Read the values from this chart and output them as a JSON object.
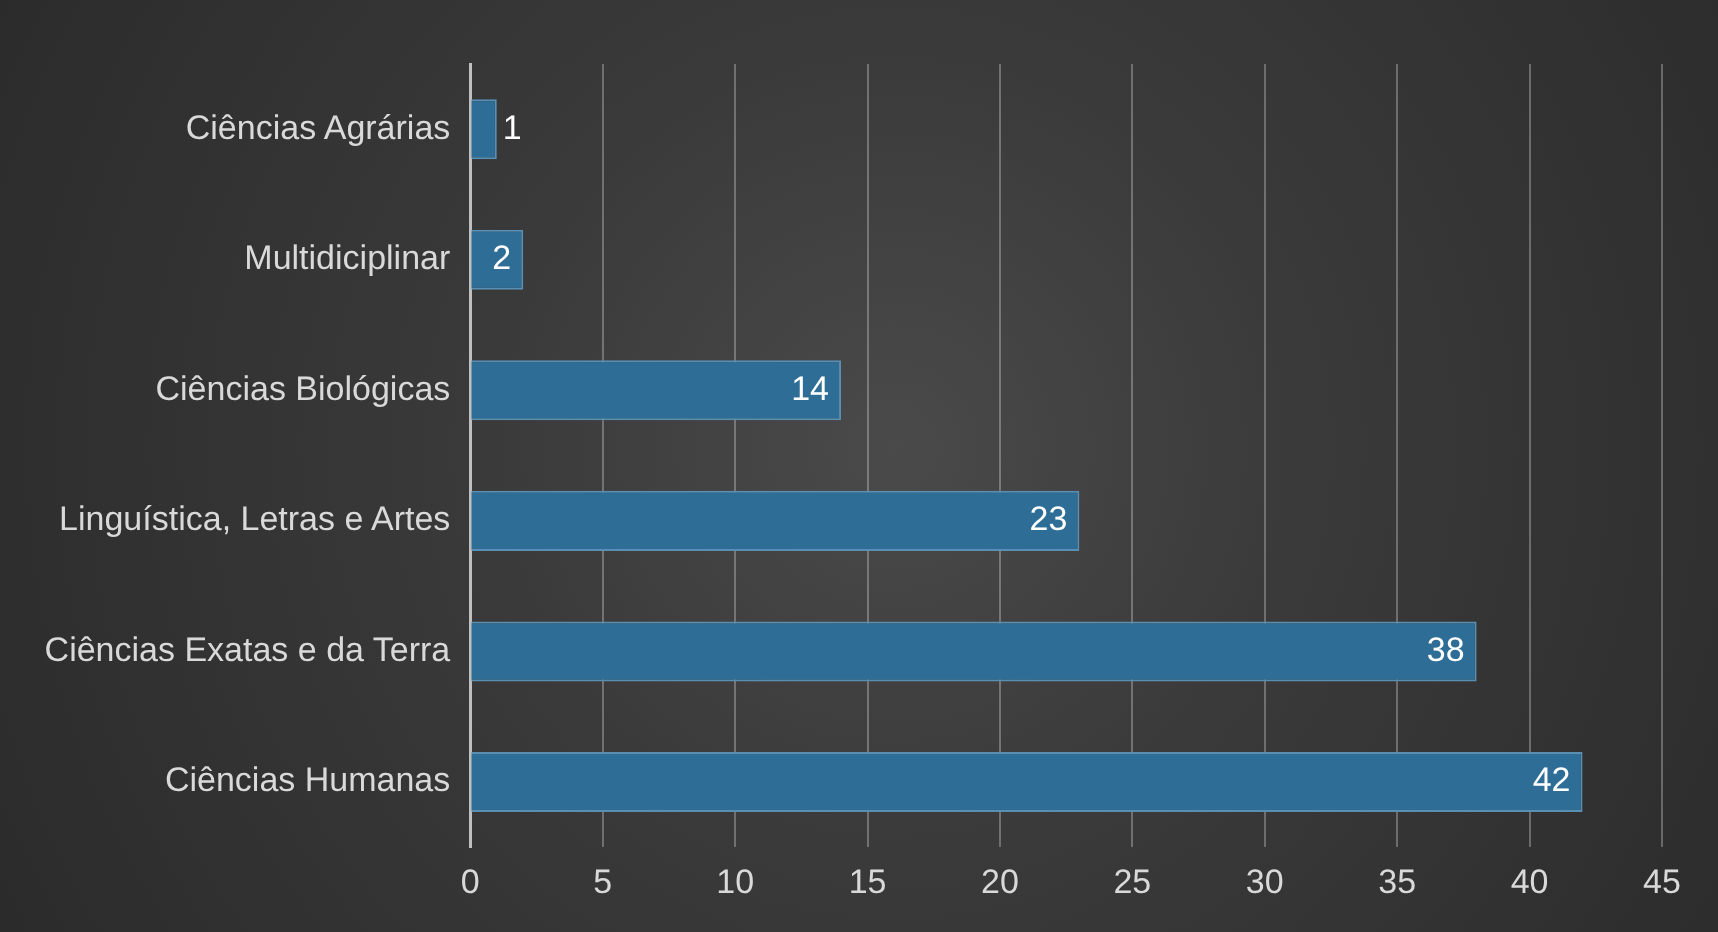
{
  "chart_data": {
    "type": "bar",
    "orientation": "horizontal",
    "categories": [
      "Ciências Agrárias",
      "Multidiciplinar",
      "Ciências Biológicas",
      "Linguística, Letras e Artes",
      "Ciências Exatas e da Terra",
      "Ciências Humanas"
    ],
    "values": [
      1,
      2,
      14,
      23,
      38,
      42
    ],
    "color": "#2e6e96",
    "xlim": [
      0,
      45
    ],
    "xticks": [
      0,
      5,
      10,
      15,
      20,
      25,
      30,
      35,
      40,
      45
    ],
    "grid": "x",
    "legend": false,
    "data_labels": true
  }
}
